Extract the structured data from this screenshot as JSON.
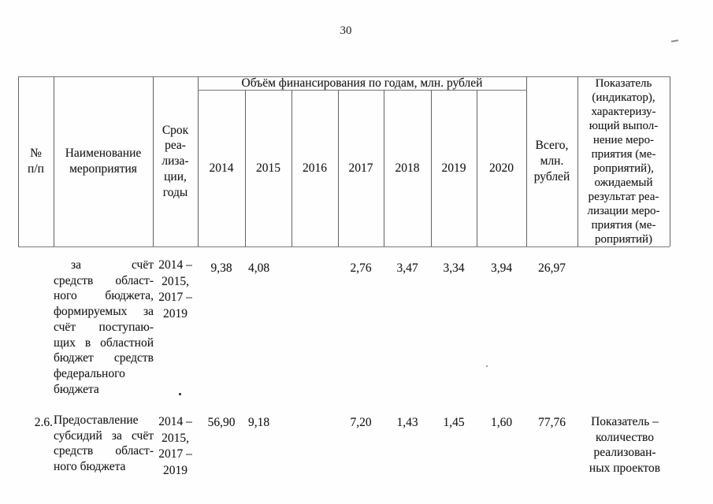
{
  "page_number": "30",
  "table": {
    "header": {
      "num_lines": [
        "№",
        "п/п"
      ],
      "name_lines": [
        "Наименование",
        "мероприятия"
      ],
      "term_lines": [
        "Срок",
        "реа-",
        "лиза-",
        "ции,",
        "годы"
      ],
      "finance_span": "Объём финансирования по годам, млн. рублей",
      "years": [
        "2014",
        "2015",
        "2016",
        "2017",
        "2018",
        "2019",
        "2020"
      ],
      "total_lines": [
        "Всего,",
        "млн.",
        "рублей"
      ],
      "indicator_lines": [
        "Показатель",
        "(индикатор),",
        "характеризу-",
        "ющий выпол-",
        "нение меро-",
        "приятия (ме-",
        "роприятий),",
        "ожидаемый",
        "результат реа-",
        "лизации меро-",
        "приятия (ме-",
        "роприятий)"
      ]
    },
    "rows": [
      {
        "num": "",
        "name_lines": [
          "за счёт",
          "средств област-",
          "ного бюджета,",
          "формируемых за",
          "счёт поступаю-",
          "щих в областной",
          "бюджет средств",
          "федерального",
          "бюджета"
        ],
        "term_lines": [
          "2014 –",
          "2015,",
          "2017 –",
          "2019"
        ],
        "values": [
          "9,38",
          "4,08",
          "",
          "2,76",
          "3,47",
          "3,34",
          "3,94"
        ],
        "total": "26,97",
        "indicator_lines": []
      },
      {
        "num": "2.6.",
        "name_lines": [
          "Предоставление",
          "субсидий за счёт",
          "средств област-",
          "ного бюджета"
        ],
        "term_lines": [
          "2014 –",
          "2015,",
          "2017 –",
          "2019"
        ],
        "values": [
          "56,90",
          "9,18",
          "",
          "7,20",
          "1,43",
          "1,45",
          "1,60"
        ],
        "total": "77,76",
        "indicator_lines": [
          "Показатель –",
          "количество",
          "реализован-",
          "ных проектов"
        ]
      }
    ]
  }
}
